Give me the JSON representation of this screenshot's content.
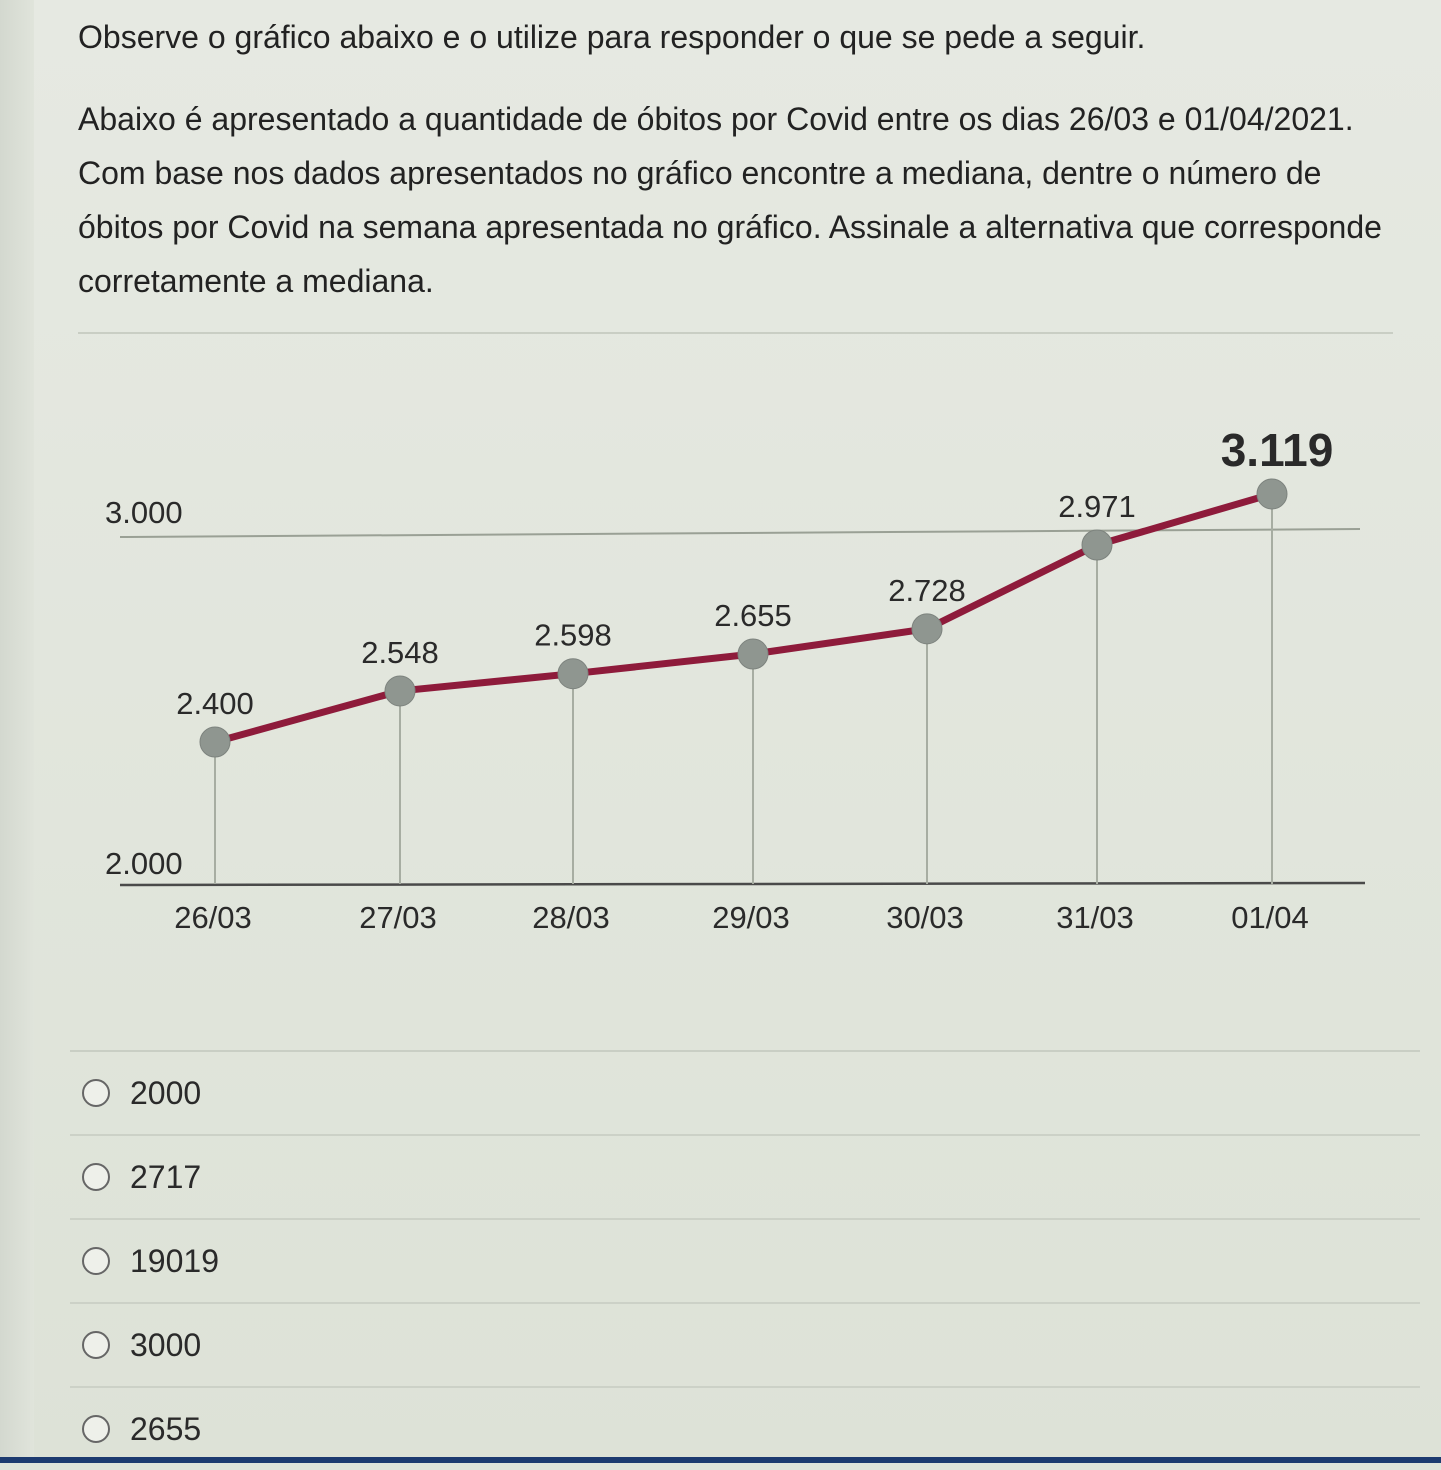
{
  "question": {
    "intro": "Observe o gráfico abaixo e o utilize para responder o que se pede a seguir.",
    "body": "Abaixo é apresentado a quantidade de óbitos por Covid entre os dias 26/03 e 01/04/2021. Com base nos dados apresentados no gráfico encontre a mediana, dentre o número de óbitos por Covid na semana apresentada no gráfico. Assinale a alternativa que corresponde corretamente a mediana."
  },
  "chart_data": {
    "type": "line",
    "title": "",
    "xlabel": "",
    "ylabel": "",
    "categories": [
      "26/03",
      "27/03",
      "28/03",
      "29/03",
      "30/03",
      "31/03",
      "01/04"
    ],
    "series": [
      {
        "values": [
          2400,
          2548,
          2598,
          2655,
          2728,
          2971,
          3119
        ]
      }
    ],
    "value_labels": [
      "2.400",
      "2.548",
      "2.598",
      "2.655",
      "2.728",
      "2.971",
      "3.119"
    ],
    "y_tick_labels": [
      "2.000",
      "3.000"
    ],
    "y_ticks": [
      2000,
      3000
    ],
    "ylim": [
      2000,
      3000
    ],
    "colors": {
      "line": "#8e1b3b",
      "marker": "#8f9690"
    },
    "grid": false,
    "legend": "none"
  },
  "options": [
    {
      "label": "2000"
    },
    {
      "label": "2717"
    },
    {
      "label": "19019"
    },
    {
      "label": "3000"
    },
    {
      "label": "2655"
    }
  ]
}
